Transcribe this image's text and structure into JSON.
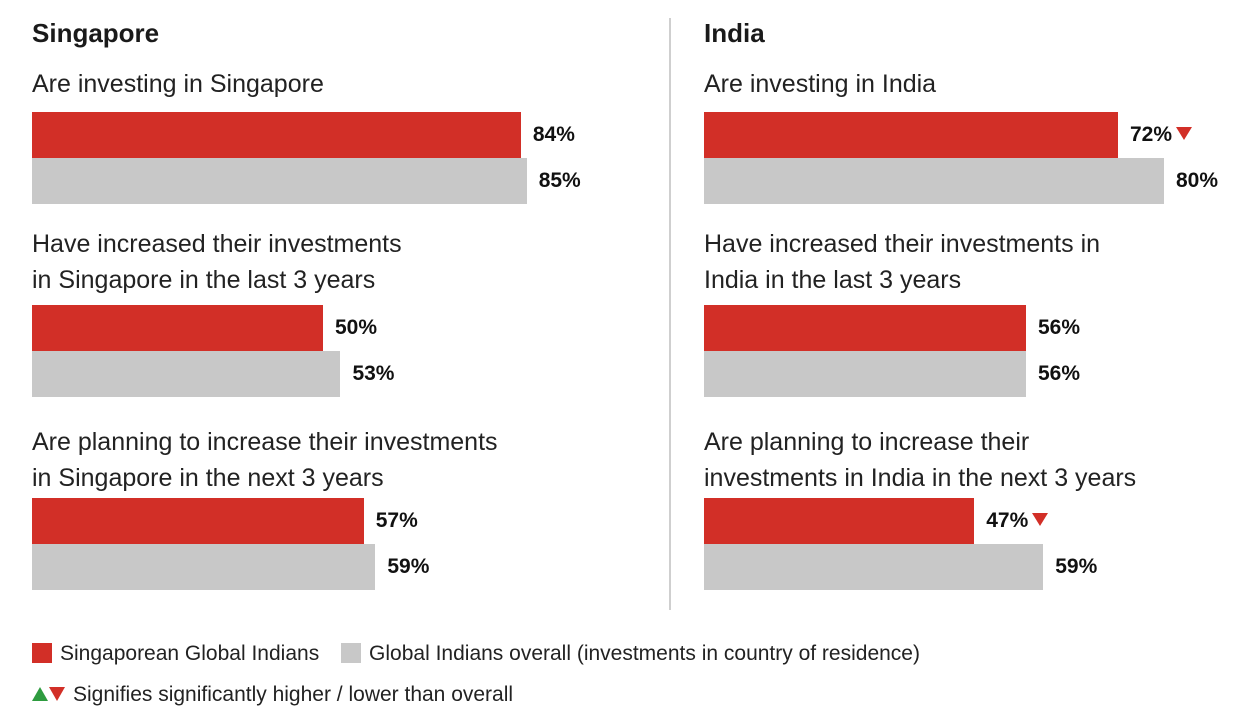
{
  "chart_data": [
    {
      "type": "bar",
      "orientation": "horizontal",
      "title": "Singapore",
      "categories": [
        "Are investing in Singapore",
        "Have increased their investments\nin Singapore in the last 3 years",
        "Are planning to increase their investments\nin Singapore in the next 3 years"
      ],
      "series": [
        {
          "name": "Singaporean Global Indians",
          "color": "#d22f27",
          "values": [
            84,
            50,
            57
          ],
          "labels": [
            "84%",
            "50%",
            "57%"
          ],
          "flags": [
            "",
            "",
            ""
          ]
        },
        {
          "name": "Global Indians overall (investments in country of residence)",
          "color": "#c8c8c8",
          "values": [
            85,
            53,
            59
          ],
          "labels": [
            "85%",
            "53%",
            "59%"
          ],
          "flags": [
            "",
            "",
            ""
          ]
        }
      ],
      "xlim": [
        0,
        100
      ]
    },
    {
      "type": "bar",
      "orientation": "horizontal",
      "title": "India",
      "categories": [
        "Are investing in India",
        "Have increased their investments in\nIndia in the last 3 years",
        "Are planning to increase their\ninvestments in India in the next 3 years"
      ],
      "series": [
        {
          "name": "Singaporean Global Indians",
          "color": "#d22f27",
          "values": [
            72,
            56,
            47
          ],
          "labels": [
            "72%",
            "56%",
            "47%"
          ],
          "flags": [
            "lower",
            "",
            "lower"
          ]
        },
        {
          "name": "Global Indians overall (investments in country of residence)",
          "color": "#c8c8c8",
          "values": [
            80,
            56,
            59
          ],
          "labels": [
            "80%",
            "56%",
            "59%"
          ],
          "flags": [
            "",
            "",
            ""
          ]
        }
      ],
      "xlim": [
        0,
        100
      ]
    }
  ],
  "legend": {
    "series_a": "Singaporean Global Indians",
    "series_b": "Global Indians overall (investments in country of residence)",
    "significance": "Signifies significantly higher / lower than overall"
  },
  "colors": {
    "red": "#d22f27",
    "grey": "#c8c8c8",
    "up": "#2e9b3f"
  }
}
